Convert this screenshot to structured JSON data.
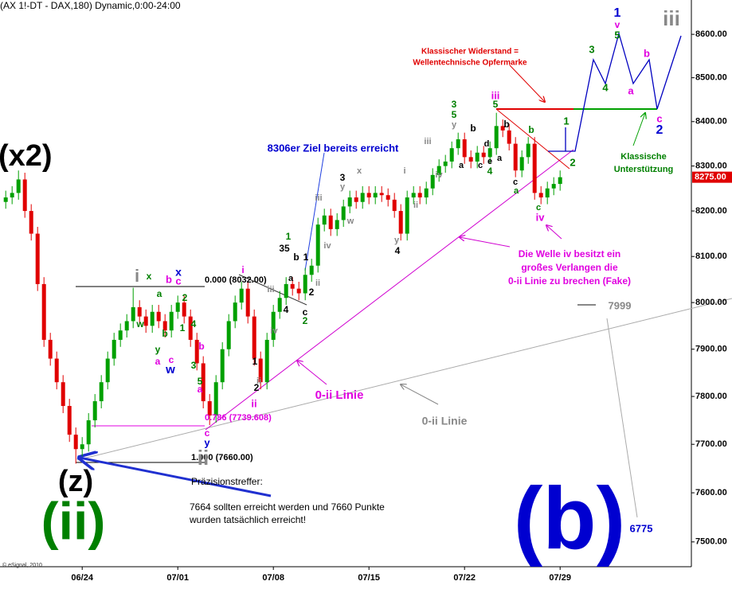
{
  "chart_data": {
    "type": "candlestick",
    "title": "(AX 1!-DT - DAX,180) Dynamic,0:00-24:00",
    "copyright": "© eSignal, 2010",
    "log_scale": true,
    "up_color": "#00a000",
    "down_color": "#e00000",
    "ylim": [
      7450,
      8680
    ],
    "yticks": [
      {
        "value": 7500,
        "label": "7500.00"
      },
      {
        "value": 7600,
        "label": "7600.00"
      },
      {
        "value": 7700,
        "label": "7700.00"
      },
      {
        "value": 7800,
        "label": "7800.00"
      },
      {
        "value": 7900,
        "label": "7900.00"
      },
      {
        "value": 8000,
        "label": "8000.00"
      },
      {
        "value": 8100,
        "label": "8100.00"
      },
      {
        "value": 8200,
        "label": "8200.00"
      },
      {
        "value": 8300,
        "label": "8300.00"
      },
      {
        "value": 8400,
        "label": "8400.00"
      },
      {
        "value": 8500,
        "label": "8500.00"
      },
      {
        "value": 8600,
        "label": "8600.00"
      }
    ],
    "xlim": [
      -0.9,
      107.6
    ],
    "xticks": [
      {
        "value": 12,
        "label": "06/24"
      },
      {
        "value": 27,
        "label": "07/01"
      },
      {
        "value": 42,
        "label": "07/08"
      },
      {
        "value": 57,
        "label": "07/15"
      },
      {
        "value": 72,
        "label": "07/22"
      },
      {
        "value": 87,
        "label": "07/29"
      }
    ],
    "last_price": {
      "value": 8275,
      "label": "8275.00"
    },
    "candles": [
      [
        8220,
        8245,
        8205,
        8230
      ],
      [
        8230,
        8255,
        8215,
        8240
      ],
      [
        8240,
        8290,
        8225,
        8270
      ],
      [
        8270,
        8285,
        8185,
        8200
      ],
      [
        8200,
        8215,
        8135,
        8150
      ],
      [
        8150,
        8165,
        8025,
        8040
      ],
      [
        8040,
        8055,
        7905,
        7920
      ],
      [
        7920,
        7935,
        7865,
        7880
      ],
      [
        7880,
        7895,
        7815,
        7830
      ],
      [
        7830,
        7845,
        7765,
        7780
      ],
      [
        7780,
        7795,
        7705,
        7720
      ],
      [
        7720,
        7735,
        7660,
        7690
      ],
      [
        7690,
        7715,
        7675,
        7700
      ],
      [
        7700,
        7765,
        7685,
        7750
      ],
      [
        7750,
        7805,
        7735,
        7790
      ],
      [
        7790,
        7845,
        7775,
        7830
      ],
      [
        7830,
        7895,
        7815,
        7880
      ],
      [
        7880,
        7935,
        7865,
        7920
      ],
      [
        7920,
        7955,
        7905,
        7940
      ],
      [
        7940,
        7975,
        7925,
        7960
      ],
      [
        7960,
        8032,
        7945,
        7990
      ],
      [
        7990,
        8005,
        7955,
        7970
      ],
      [
        7970,
        7985,
        7935,
        7950
      ],
      [
        7950,
        7995,
        7935,
        7980
      ],
      [
        7980,
        7995,
        7945,
        7960
      ],
      [
        7960,
        7975,
        7925,
        7940
      ],
      [
        7940,
        7995,
        7925,
        7980
      ],
      [
        7980,
        8015,
        7965,
        8000
      ],
      [
        8000,
        8015,
        7955,
        7970
      ],
      [
        7970,
        7985,
        7905,
        7920
      ],
      [
        7920,
        7935,
        7855,
        7870
      ],
      [
        7870,
        7885,
        7775,
        7790
      ],
      [
        7790,
        7805,
        7740,
        7760
      ],
      [
        7760,
        7845,
        7745,
        7830
      ],
      [
        7830,
        7915,
        7815,
        7900
      ],
      [
        7900,
        7975,
        7885,
        7960
      ],
      [
        7960,
        8015,
        7945,
        8000
      ],
      [
        8000,
        8045,
        7985,
        8030
      ],
      [
        8030,
        8045,
        7955,
        7970
      ],
      [
        7970,
        7985,
        7865,
        7880
      ],
      [
        7880,
        7895,
        7815,
        7830
      ],
      [
        7830,
        7935,
        7815,
        7920
      ],
      [
        7920,
        7995,
        7905,
        7980
      ],
      [
        7980,
        8025,
        7965,
        8010
      ],
      [
        8010,
        8055,
        7995,
        8040
      ],
      [
        8040,
        8055,
        8015,
        8030
      ],
      [
        8030,
        8045,
        8005,
        8020
      ],
      [
        8020,
        8075,
        8005,
        8060
      ],
      [
        8060,
        8095,
        8045,
        8080
      ],
      [
        8080,
        8185,
        8065,
        8170
      ],
      [
        8170,
        8205,
        8155,
        8190
      ],
      [
        8190,
        8205,
        8145,
        8160
      ],
      [
        8160,
        8195,
        8145,
        8180
      ],
      [
        8180,
        8225,
        8165,
        8210
      ],
      [
        8210,
        8245,
        8195,
        8230
      ],
      [
        8230,
        8245,
        8205,
        8220
      ],
      [
        8220,
        8255,
        8205,
        8240
      ],
      [
        8240,
        8255,
        8215,
        8230
      ],
      [
        8230,
        8255,
        8215,
        8240
      ],
      [
        8240,
        8255,
        8220,
        8235
      ],
      [
        8235,
        8250,
        8210,
        8225
      ],
      [
        8225,
        8240,
        8185,
        8200
      ],
      [
        8200,
        8215,
        8135,
        8150
      ],
      [
        8150,
        8245,
        8135,
        8230
      ],
      [
        8230,
        8255,
        8215,
        8240
      ],
      [
        8240,
        8255,
        8215,
        8230
      ],
      [
        8230,
        8265,
        8215,
        8250
      ],
      [
        8250,
        8295,
        8235,
        8280
      ],
      [
        8280,
        8315,
        8265,
        8300
      ],
      [
        8300,
        8325,
        8285,
        8310
      ],
      [
        8310,
        8355,
        8295,
        8340
      ],
      [
        8340,
        8375,
        8325,
        8360
      ],
      [
        8360,
        8375,
        8305,
        8320
      ],
      [
        8320,
        8335,
        8295,
        8310
      ],
      [
        8310,
        8345,
        8295,
        8330
      ],
      [
        8330,
        8345,
        8305,
        8320
      ],
      [
        8320,
        8355,
        8305,
        8340
      ],
      [
        8340,
        8420,
        8325,
        8390
      ],
      [
        8390,
        8405,
        8365,
        8380
      ],
      [
        8380,
        8395,
        8335,
        8350
      ],
      [
        8350,
        8365,
        8275,
        8290
      ],
      [
        8290,
        8335,
        8275,
        8320
      ],
      [
        8320,
        8365,
        8305,
        8350
      ],
      [
        8350,
        8365,
        8225,
        8240
      ],
      [
        8240,
        8255,
        8215,
        8230
      ],
      [
        8230,
        8265,
        8215,
        8250
      ],
      [
        8250,
        8275,
        8235,
        8260
      ],
      [
        8260,
        8290,
        8245,
        8275
      ]
    ],
    "annotations": [
      "Klassischer Widerstand =",
      "Wellentechnische Opfermarke",
      "8306er Ziel bereits erreicht",
      "Klassische",
      "Unterstützung",
      "Die Welle iv besitzt ein",
      "großes Verlangen die",
      "0-ii Linie zu brechen (Fake)",
      "0-ii Linie",
      "0-ii Linie",
      "7999",
      "6775",
      "Präzisionstreffer:",
      "7664 sollten erreicht werden und 7660 Punkte",
      "wurden tatsächlich erreicht!",
      "0.000 (8032.00)",
      "0.786 (7739.608)",
      "1.000 (7660.00)",
      "(x2)",
      "(z)",
      "(ii)",
      "(b)",
      "1",
      "v",
      "5",
      "iii",
      "i",
      "x",
      "x",
      "b",
      "c",
      "a",
      "2",
      "w",
      "y",
      "a",
      "c",
      "w",
      "b",
      "1",
      "4",
      "b",
      "3",
      "5",
      "a",
      "c",
      "y",
      "ii",
      "i",
      "ii",
      "1",
      "2",
      "ii",
      "iii",
      "iv",
      "4",
      "35",
      "1",
      "b",
      "1",
      "a",
      "c",
      "2",
      "2",
      "ii",
      "iii",
      "iv",
      "3",
      "y",
      "x",
      "w",
      "i",
      "ii",
      "y",
      "4",
      "iii",
      "iv",
      "3",
      "5",
      "y",
      "b",
      "a",
      "c",
      "e",
      "d",
      "4",
      "a",
      "b",
      "iii",
      "5",
      "b",
      "c",
      "a",
      "c",
      "iv",
      "1",
      "2",
      "3",
      "4",
      "a",
      "b",
      "c",
      "2"
    ]
  }
}
